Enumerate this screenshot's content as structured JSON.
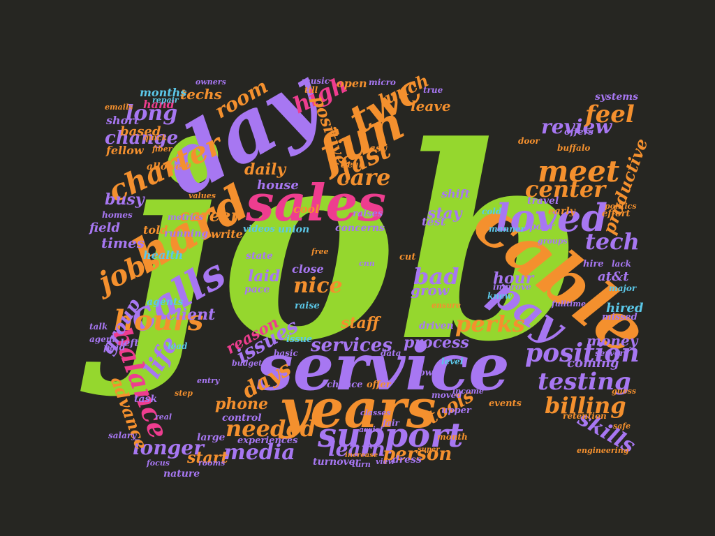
{
  "words": {
    "job": "job",
    "service": "service",
    "cable": "cable",
    "years": "years",
    "day": "day",
    "sales": "sales",
    "hard": "hard",
    "fun": "fun",
    "calls": "calls",
    "support": "support",
    "pay": "pay",
    "loved": "loved",
    "twc": "twc",
    "charter": "charter",
    "jobs": "jobs",
    "hours": "hours",
    "balance": "balance",
    "meet": "meet",
    "position": "position",
    "testing": "testing",
    "billing": "billing",
    "needed": "needed",
    "media": "media",
    "longer": "longer",
    "learn": "learn",
    "days": "days",
    "perks": "perks",
    "center": "center",
    "review": "review",
    "skills": "skills",
    "tech": "tech",
    "fast": "fast",
    "care": "care",
    "high": "high",
    "feel": "feel",
    "long": "long",
    "change": "change",
    "room": "room",
    "positive": "positive",
    "nice": "nice",
    "bad": "bad",
    "group": "group",
    "life": "life",
    "advance": "advance",
    "busy": "busy",
    "career": "career",
    "daily": "daily",
    "lunch": "lunch",
    "issues": "issues",
    "reason": "reason",
    "services": "services",
    "client": "client",
    "staff": "staff",
    "process": "process",
    "tools": "tools",
    "person": "person",
    "phone": "phone",
    "productive": "productive",
    "stay": "stay",
    "hour": "hour",
    "grow": "grow",
    "laid": "laid",
    "start": "start",
    "techs": "techs",
    "times": "times",
    "house": "house",
    "money": "money",
    "hired": "hired",
    "coming": "coming",
    "open": "open",
    "leave": "leave",
    "based": "based",
    "months": "months",
    "hand": "hand",
    "short": "short",
    "fellow": "fellow",
    "allowed": "allowed",
    "field": "field",
    "told": "told",
    "running": "running",
    "write": "write",
    "videos": "videos",
    "union": "union",
    "concerns": "concerns",
    "health": "health",
    "agents": "agents",
    "state": "state",
    "pace": "pace",
    "close": "close",
    "raise": "raise",
    "control": "control",
    "large": "large",
    "experiences": "experiences",
    "nature": "nature",
    "turnover": "turnover",
    "dress": "dress",
    "chance": "chance",
    "offer": "offer",
    "low": "low",
    "upper": "upper",
    "month": "month",
    "systems": "systems",
    "offers": "offers",
    "early": "early",
    "travel": "travel",
    "effort": "effort",
    "poor": "poor",
    "manner": "manner",
    "improve": "improve",
    "knew": "knew",
    "driven": "driven",
    "at_t": "at&t",
    "major": "major",
    "missed": "missed",
    "lack": "lack",
    "hire": "hire",
    "door": "door",
    "buffalo": "buffalo",
    "cold": "cold",
    "test": "test",
    "shift": "shift",
    "cool": "cool",
    "raises": "raises",
    "easy": "easy",
    "deal": "deal",
    "moved": "moved",
    "level": "level",
    "issue": "issue",
    "data": "data",
    "basic": "basic",
    "fair": "fair",
    "events": "events",
    "income": "income",
    "retention": "retention",
    "server": "server",
    "task": "task",
    "paid": "paid",
    "left": "left",
    "agent": "agent",
    "talk": "talk",
    "metrics": "metrics",
    "homes": "homes",
    "music": "music",
    "micro": "micro",
    "true": "true",
    "till": "till",
    "repair": "repair",
    "owners": "owners",
    "emails": "emails",
    "fiber": "fiber",
    "quick": "quick",
    "salary": "salary",
    "values": "values",
    "lead": "lead",
    "free": "free",
    "cut": "cut",
    "cnn": "cnn",
    "classes": "classes",
    "entry": "entry",
    "budget": "budget",
    "step": "step",
    "real": "real",
    "focus": "focus",
    "rooms": "rooms",
    "turn": "turn",
    "view": "view",
    "assist": "assist",
    "increase": "increase",
    "month2": "month",
    "super": "super",
    "level2": "level",
    "ensure": "ensure",
    "hold": "hold",
    "engineering": "engineering",
    "safe": "safe",
    "groups": "groups",
    "guess": "guess",
    "politics": "politics",
    "fulltime": "fulltime"
  },
  "colors": {
    "background": "#262622",
    "green": "#95d72e",
    "purple": "#a777f2",
    "orange": "#f4902e",
    "pink": "#ee3d8f",
    "cyan": "#5bc7e8"
  }
}
